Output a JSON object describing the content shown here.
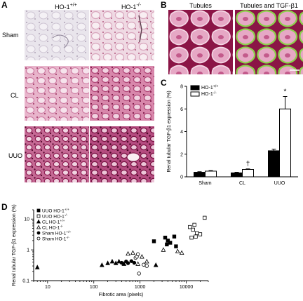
{
  "panel_letters": {
    "a": "A",
    "b": "B",
    "c": "C",
    "d": "D"
  },
  "panel_a": {
    "col_titles": [
      "HO-1+/+",
      "HO-1-/-"
    ],
    "col_titles_display": [
      {
        "base": "HO-1",
        "sup": "+/+"
      },
      {
        "base": "HO-1",
        "sup": "-/-"
      }
    ],
    "row_labels": [
      "Sham",
      "CL",
      "UUO"
    ]
  },
  "panel_b": {
    "titles": [
      "Tubules",
      "Tubules and TGF-β1"
    ]
  },
  "colors": {
    "stain_pink": "#e7a9c4",
    "stain_dark": "#8b1546",
    "tgf_green": "#8bd24a",
    "bar_black": "#000000",
    "bar_white": "#ffffff"
  },
  "chart_data": [
    {
      "type": "bar",
      "panel": "C",
      "ylabel": "Renal tubular TGF-β1 expression (%)",
      "categories": [
        "Sham",
        "CL",
        "UUO"
      ],
      "ylim": [
        0,
        8
      ],
      "yticks": [
        0,
        2,
        4,
        6,
        8
      ],
      "legend": "top-left",
      "series": [
        {
          "name": "HO-1+/+",
          "fill": "#000000",
          "values": [
            0.4,
            0.35,
            2.3
          ],
          "errors": [
            0.05,
            0.05,
            0.15
          ]
        },
        {
          "name": "HO-1-/-",
          "fill": "#ffffff",
          "values": [
            0.5,
            0.65,
            6.0
          ],
          "errors": [
            0.05,
            0.05,
            1.1
          ]
        }
      ],
      "annotations": [
        {
          "category": "CL",
          "series": "HO-1-/-",
          "text": "†"
        },
        {
          "category": "UUO",
          "series": "HO-1-/-",
          "text": "*"
        }
      ]
    },
    {
      "type": "scatter",
      "panel": "D",
      "xlabel": "Fibrotic area (pixels)",
      "ylabel": "Renal tubular TGF-β1 expression (%)",
      "xscale": "log",
      "yscale": "log",
      "xlim": [
        5,
        30000
      ],
      "ylim": [
        0.1,
        20
      ],
      "xticks": [
        10,
        100,
        1000,
        10000
      ],
      "xtick_labels": [
        "10",
        "100",
        "1000",
        "10000"
      ],
      "yticks": [
        0.1,
        1,
        10
      ],
      "ytick_labels": [
        "0.1",
        "1",
        "10"
      ],
      "legend": "top-left",
      "series": [
        {
          "name": "UUO HO-1+/+",
          "marker": "square",
          "filled": true,
          "x": [
            2000,
            3500,
            4000,
            4500,
            5500,
            3800,
            6000
          ],
          "y": [
            1.9,
            2.5,
            2.0,
            1.7,
            2.7,
            1.5,
            1.3
          ]
        },
        {
          "name": "UUO HO-1-/-",
          "marker": "square",
          "filled": false,
          "x": [
            12000,
            14000,
            15000,
            17000,
            20000,
            25000,
            16000,
            13000
          ],
          "y": [
            5.5,
            4.5,
            6.5,
            3.5,
            3.2,
            11,
            2.7,
            2.5
          ]
        },
        {
          "name": "CL HO-1+/+",
          "marker": "triangle",
          "filled": true,
          "x": [
            6,
            150,
            200,
            250,
            300,
            350,
            450,
            2200
          ],
          "y": [
            0.27,
            0.32,
            0.37,
            0.42,
            0.37,
            0.42,
            0.35,
            0.32
          ]
        },
        {
          "name": "CL HO-1-/-",
          "marker": "triangle",
          "filled": false,
          "x": [
            550,
            700,
            900,
            1100,
            1400,
            6500,
            8000,
            3200
          ],
          "y": [
            0.75,
            0.8,
            0.35,
            0.6,
            0.42,
            0.9,
            0.8,
            1.0
          ]
        },
        {
          "name": "Sham HO-1+/+",
          "marker": "circle",
          "filled": true,
          "x": [
            400,
            500,
            550,
            650,
            750
          ],
          "y": [
            0.38,
            0.42,
            0.37,
            0.43,
            0.38
          ]
        },
        {
          "name": "Sham HO-1-/-",
          "marker": "circle",
          "filled": false,
          "x": [
            800,
            850,
            900,
            1200,
            1400,
            950
          ],
          "y": [
            0.55,
            0.6,
            0.72,
            0.33,
            0.3,
            0.17
          ]
        }
      ]
    }
  ]
}
